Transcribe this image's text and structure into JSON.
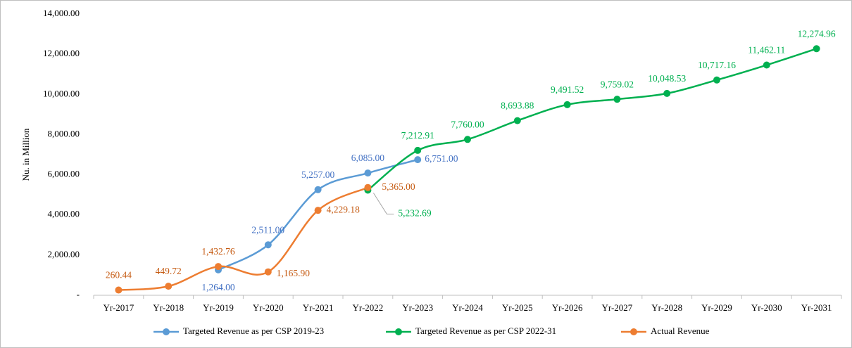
{
  "chart_data": {
    "type": "line",
    "y_label": "Nu. in Million",
    "categories": [
      "Yr-2017",
      "Yr-2018",
      "Yr-2019",
      "Yr-2020",
      "Yr-2021",
      "Yr-2022",
      "Yr-2023",
      "Yr-2024",
      "Yr-2025",
      "Yr-2026",
      "Yr-2027",
      "Yr-2028",
      "Yr-2029",
      "Yr-2030",
      "Yr-2031"
    ],
    "series": [
      {
        "name": "Targeted Revenue as per CSP 2019-23",
        "color": "#5b9bd5",
        "values": [
          null,
          null,
          1264,
          2511,
          5257,
          6085,
          6751,
          null,
          null,
          null,
          null,
          null,
          null,
          null,
          null
        ],
        "value_labels": [
          null,
          null,
          "1,264.00",
          "2,511.00",
          "5,257.00",
          "6,085.00",
          "6,751.00",
          null,
          null,
          null,
          null,
          null,
          null,
          null,
          null
        ]
      },
      {
        "name": "Targeted Revenue as per CSP 2022-31",
        "color": "#00b050",
        "values": [
          null,
          null,
          null,
          null,
          null,
          5232.69,
          7212.91,
          7760,
          8693.88,
          9491.52,
          9759.02,
          10048.53,
          10717.16,
          11462.11,
          12274.96
        ],
        "value_labels": [
          null,
          null,
          null,
          null,
          null,
          "5,232.69",
          "7,212.91",
          "7,760.00",
          "8,693.88",
          "9,491.52",
          "9,759.02",
          "10,048.53",
          "10,717.16",
          "11,462.11",
          "12,274.96"
        ]
      },
      {
        "name": "Actual Revenue",
        "color": "#ed7d31",
        "values": [
          260.44,
          449.72,
          1432.76,
          1165.9,
          4229.18,
          5365,
          null,
          null,
          null,
          null,
          null,
          null,
          null,
          null,
          null
        ],
        "value_labels": [
          "260.44",
          "449.72",
          "1,432.76",
          "1,165.90",
          "4,229.18",
          "5,365.00",
          null,
          null,
          null,
          null,
          null,
          null,
          null,
          null,
          null
        ]
      }
    ],
    "ylim": [
      0,
      14000
    ],
    "yticks": [
      {
        "value": 0,
        "label": "-"
      },
      {
        "value": 2000,
        "label": "2,000.00"
      },
      {
        "value": 4000,
        "label": "4,000.00"
      },
      {
        "value": 6000,
        "label": "6,000.00"
      },
      {
        "value": 8000,
        "label": "8,000.00"
      },
      {
        "value": 10000,
        "label": "10,000.00"
      },
      {
        "value": 12000,
        "label": "12,000.00"
      },
      {
        "value": 14000,
        "label": "14,000.00"
      }
    ],
    "grid": false,
    "legend": "bottom"
  }
}
